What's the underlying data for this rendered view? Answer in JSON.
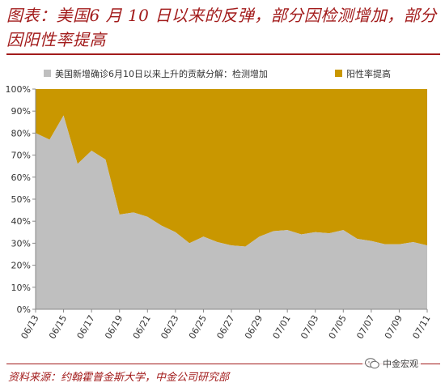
{
  "title": "图表：美国6 月 10 日以来的反弹，部分因检测增加，部分因阳性率提高",
  "source": "资料来源：约翰霍普金斯大学，中金公司研究部",
  "watermark": "中金宏观",
  "colors": {
    "testing": "#bfbfbf",
    "positivity": "#c99700",
    "title": "#a21b1b"
  },
  "chart_data": {
    "type": "area",
    "stacked": true,
    "x": [
      "06/13",
      "06/14",
      "06/15",
      "06/16",
      "06/17",
      "06/18",
      "06/19",
      "06/20",
      "06/21",
      "06/22",
      "06/23",
      "06/24",
      "06/25",
      "06/26",
      "06/27",
      "06/28",
      "06/29",
      "06/30",
      "07/01",
      "07/02",
      "07/03",
      "07/04",
      "07/05",
      "07/06",
      "07/07",
      "07/08",
      "07/09",
      "07/10",
      "07/11"
    ],
    "x_tick_labels": [
      "06/13",
      "06/15",
      "06/17",
      "06/19",
      "06/21",
      "06/23",
      "06/25",
      "06/27",
      "06/29",
      "07/01",
      "07/03",
      "07/05",
      "07/07",
      "07/09",
      "07/11"
    ],
    "series": [
      {
        "name": "美国新增确诊6月10日以来上升的贡献分解：检测增加",
        "values": [
          80,
          77,
          88,
          66,
          72,
          68,
          43,
          44,
          42,
          38,
          35,
          30,
          33,
          30.5,
          29,
          28.5,
          33,
          35.5,
          36,
          34,
          35,
          34.5,
          36,
          32,
          31,
          29.5,
          29.5,
          30.5,
          29
        ]
      },
      {
        "name": "阳性率提高",
        "values": [
          20,
          23,
          12,
          34,
          28,
          32,
          57,
          56,
          58,
          62,
          65,
          70,
          67,
          69.5,
          71,
          71.5,
          67,
          64.5,
          64,
          66,
          65,
          65.5,
          64,
          68,
          69,
          70.5,
          70.5,
          69.5,
          71
        ]
      }
    ],
    "ylim": [
      0,
      100
    ],
    "yticks": [
      "0%",
      "10%",
      "20%",
      "30%",
      "40%",
      "50%",
      "60%",
      "70%",
      "80%",
      "90%",
      "100%"
    ],
    "legend": "top"
  }
}
